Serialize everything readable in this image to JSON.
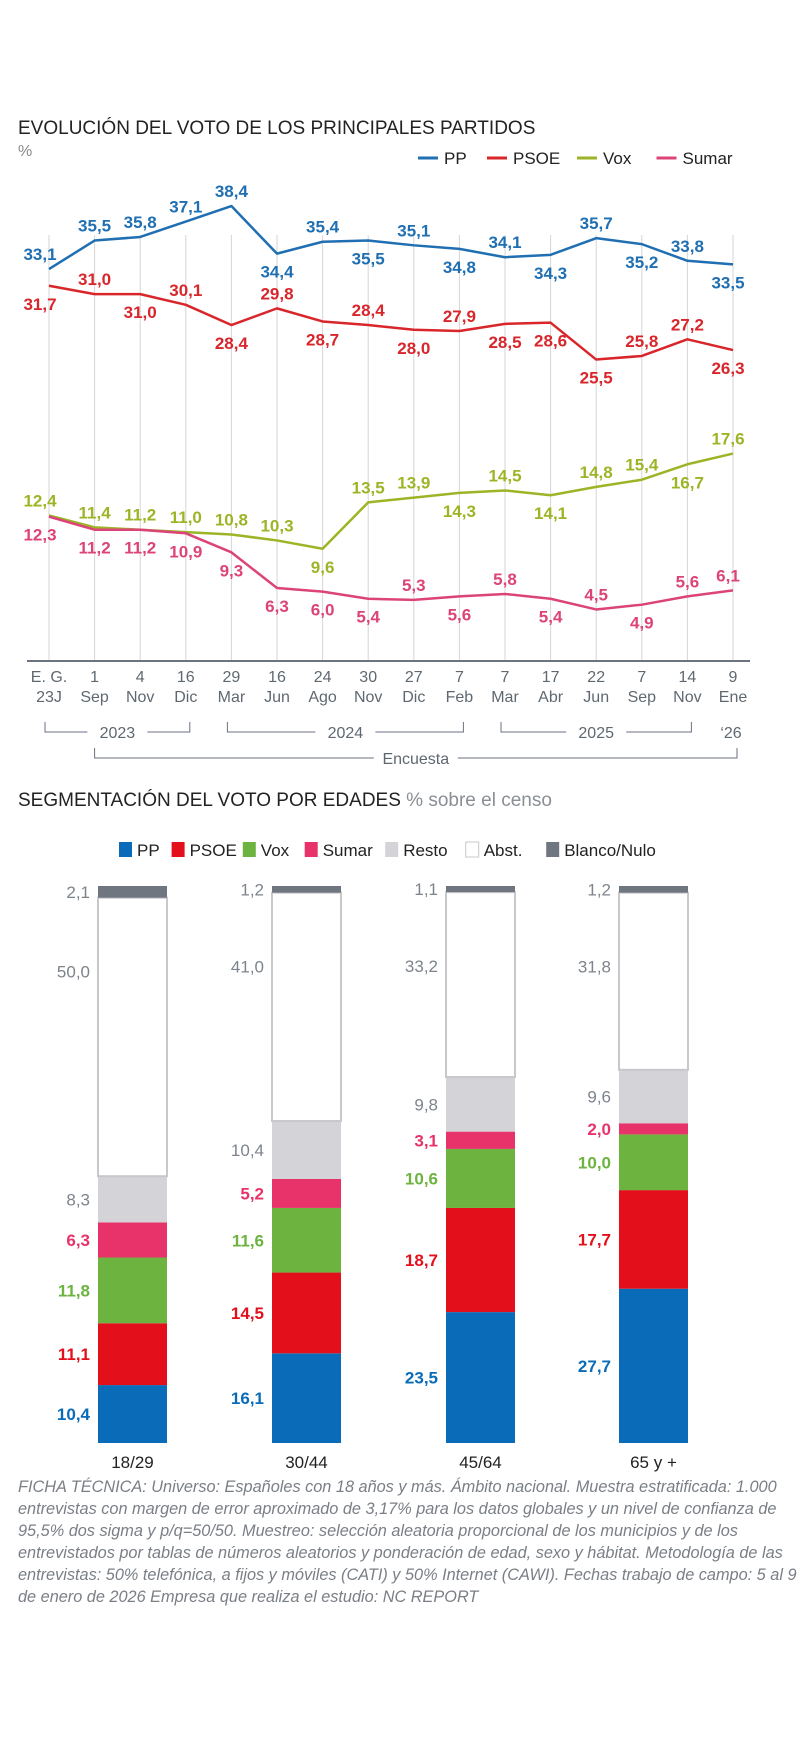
{
  "chart_data": [
    {
      "type": "line",
      "title": "EVOLUCIÓN DEL  VOTO DE LOS PRINCIPALES PARTIDOS",
      "ylabel": "%",
      "legend_position": "top-right",
      "grid": "vertical",
      "categories": [
        [
          "E. G.",
          "23J"
        ],
        [
          "1",
          "Sep"
        ],
        [
          "4",
          "Nov"
        ],
        [
          "16",
          "Dic"
        ],
        [
          "29",
          "Mar"
        ],
        [
          "16",
          "Jun"
        ],
        [
          "24",
          "Ago"
        ],
        [
          "30",
          "Nov"
        ],
        [
          "27",
          "Dic"
        ],
        [
          "7",
          "Feb"
        ],
        [
          "7",
          "Mar"
        ],
        [
          "17",
          "Abr"
        ],
        [
          "22",
          "Jun"
        ],
        [
          "7",
          "Sep"
        ],
        [
          "14",
          "Nov"
        ],
        [
          "9",
          "Ene"
        ]
      ],
      "year_groups": [
        {
          "label": "2023",
          "from": 0,
          "to": 3
        },
        {
          "label": "2024",
          "from": 4,
          "to": 9
        },
        {
          "label": "2025",
          "from": 10,
          "to": 14
        },
        {
          "label": "‘26",
          "from": 15,
          "to": 15
        }
      ],
      "survey_label": "Encuesta",
      "series": [
        {
          "name": "PP",
          "color": "#1f6fb2",
          "values": [
            33.1,
            35.5,
            35.8,
            37.1,
            38.4,
            34.4,
            35.4,
            35.5,
            35.1,
            34.8,
            34.1,
            34.3,
            35.7,
            35.2,
            33.8,
            33.5
          ],
          "labels": [
            "33,1",
            "35,5",
            "35,8",
            "37,1",
            "38,4",
            "34,4",
            "35,4",
            "35,5",
            "35,1",
            "34,8",
            "34,1",
            "34,3",
            "35,7",
            "35,2",
            "33,8",
            "33,5"
          ]
        },
        {
          "name": "PSOE",
          "color": "#d8262b",
          "values": [
            31.7,
            31.0,
            31.0,
            30.1,
            28.4,
            29.8,
            28.7,
            28.4,
            28.0,
            27.9,
            28.5,
            28.6,
            25.5,
            25.8,
            27.2,
            26.3
          ],
          "labels": [
            "31,7",
            "31,0",
            "31,0",
            "30,1",
            "28,4",
            "29,8",
            "28,7",
            "28,4",
            "28,0",
            "27,9",
            "28,5",
            "28,6",
            "25,5",
            "25,8",
            "27,2",
            "26,3"
          ]
        },
        {
          "name": "Vox",
          "color": "#9cb526",
          "values": [
            12.4,
            11.4,
            11.2,
            11.0,
            10.8,
            10.3,
            9.6,
            13.5,
            13.9,
            14.3,
            14.5,
            14.1,
            14.8,
            15.4,
            16.7,
            17.6
          ],
          "labels": [
            "12,4",
            "11,4",
            "11,2",
            "11,0",
            "10,8",
            "10,3",
            "9,6",
            "13,5",
            "13,9",
            "14,3",
            "14,5",
            "14,1",
            "14,8",
            "15,4",
            "16,7",
            "17,6"
          ]
        },
        {
          "name": "Sumar",
          "color": "#dc4479",
          "values": [
            12.3,
            11.2,
            11.2,
            10.9,
            9.3,
            6.3,
            6.0,
            5.4,
            5.3,
            5.6,
            5.8,
            5.4,
            4.5,
            4.9,
            5.6,
            6.1
          ],
          "labels": [
            "12,3",
            "11,2",
            "11,2",
            "10,9",
            "9,3",
            "6,3",
            "6,0",
            "5,4",
            "5,3",
            "5,6",
            "5,8",
            "5,4",
            "4,5",
            "4,9",
            "5,6",
            "6,1"
          ]
        }
      ]
    },
    {
      "type": "stacked-bar",
      "title": "SEGMENTACIÓN DEL VOTO POR EDADES",
      "subtitle": "% sobre el censo",
      "legend_position": "top",
      "categories": [
        "18/29",
        "30/44",
        "45/64",
        "65 y +"
      ],
      "series": [
        {
          "name": "PP",
          "color": "#0a6cb8",
          "values": [
            10.4,
            16.1,
            23.5,
            27.7
          ],
          "labels": [
            "10,4",
            "16,1",
            "23,5",
            "27,7"
          ]
        },
        {
          "name": "PSOE",
          "color": "#e3101c",
          "values": [
            11.1,
            14.5,
            18.7,
            17.7
          ],
          "labels": [
            "11,1",
            "14,5",
            "18,7",
            "17,7"
          ]
        },
        {
          "name": "Vox",
          "color": "#6db33f",
          "values": [
            11.8,
            11.6,
            10.6,
            10.0
          ],
          "labels": [
            "11,8",
            "11,6",
            "10,6",
            "10,0"
          ]
        },
        {
          "name": "Sumar",
          "color": "#e8336a",
          "values": [
            6.3,
            5.2,
            3.1,
            2.0
          ],
          "labels": [
            "6,3",
            "5,2",
            "3,1",
            "2,0"
          ]
        },
        {
          "name": "Resto",
          "color": "#d3d3d8",
          "values": [
            8.3,
            10.4,
            9.8,
            9.6
          ],
          "labels": [
            "8,3",
            "10,4",
            "9,8",
            "9,6"
          ]
        },
        {
          "name": "Abst.",
          "color": "#ffffff",
          "values": [
            50.0,
            41.0,
            33.2,
            31.8
          ],
          "labels": [
            "50,0",
            "41,0",
            "33,2",
            "31,8"
          ]
        },
        {
          "name": "Blanco/Nulo",
          "color": "#6f7680",
          "values": [
            2.1,
            1.2,
            1.1,
            1.2
          ],
          "labels": [
            "2,1",
            "1,2",
            "1,1",
            "1,2"
          ]
        }
      ]
    }
  ],
  "footnote": "FICHA TÉCNICA: Universo: Españoles con 18 años y más. Ámbito nacional. Muestra estratificada: 1.000 entrevistas con margen de error aproximado de 3,17% para los datos globales y un nivel de confianza de 95,5% dos sigma y p/q=50/50. Muestreo: selección aleatoria proporcional de los municipios y de los entrevistados por tablas de números aleatorios y ponderación de edad, sexo y hábitat. Metodología de las entrevistas: 50% telefónica, a fijos y móviles (CATI) y 50% Internet (CAWI). Fechas trabajo de campo: 5 al 9 de enero de 2026 Empresa que realiza el estudio: NC REPORT"
}
